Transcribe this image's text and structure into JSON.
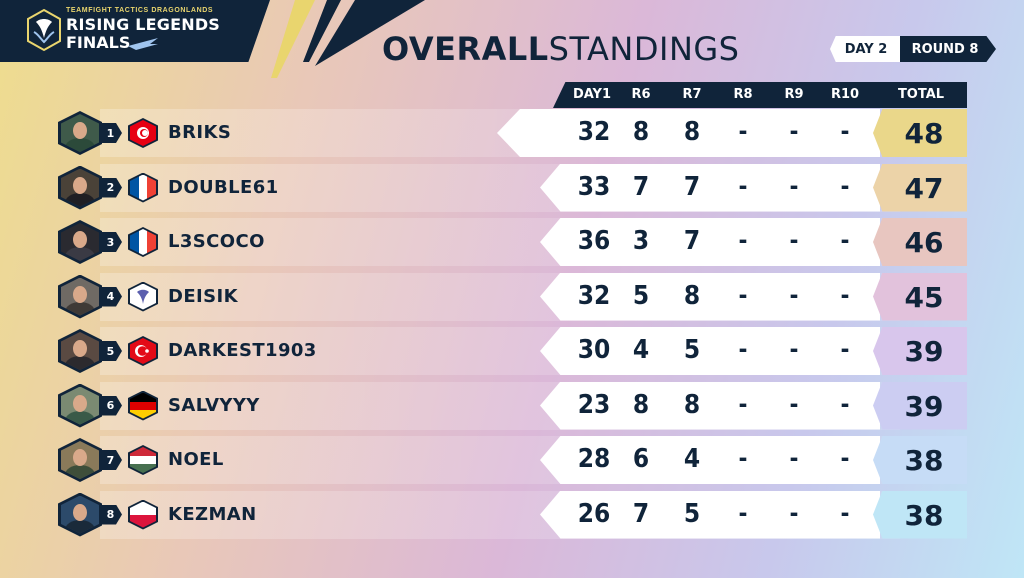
{
  "branding": {
    "kicker": "TEAMFIGHT TACTICS DRAGONLANDS",
    "title": "RISING LEGENDS",
    "subtitle": "FINALS"
  },
  "heading": {
    "bold": "OVERALL",
    "light": "STANDINGS"
  },
  "day_label": "DAY 2",
  "round_label": "ROUND 8",
  "columns": [
    "DAY1",
    "R6",
    "R7",
    "R8",
    "R9",
    "R10",
    "TOTAL"
  ],
  "rows": [
    {
      "rank": "1",
      "name": "BRIKS",
      "flag": "tunisia-flag-icon",
      "day1": "32",
      "r6": "8",
      "r7": "8",
      "r8": "-",
      "r9": "-",
      "r10": "-",
      "total": "48"
    },
    {
      "rank": "2",
      "name": "DOUBLE61",
      "flag": "france-flag-icon",
      "day1": "33",
      "r6": "7",
      "r7": "7",
      "r8": "-",
      "r9": "-",
      "r10": "-",
      "total": "47"
    },
    {
      "rank": "3",
      "name": "L3SCOCO",
      "flag": "france-flag-icon",
      "day1": "36",
      "r6": "3",
      "r7": "7",
      "r8": "-",
      "r9": "-",
      "r10": "-",
      "total": "46"
    },
    {
      "rank": "4",
      "name": "DEISIK",
      "flag": "tft-emblem-icon",
      "day1": "32",
      "r6": "5",
      "r7": "8",
      "r8": "-",
      "r9": "-",
      "r10": "-",
      "total": "45"
    },
    {
      "rank": "5",
      "name": "DARKEST1903",
      "flag": "turkey-flag-icon",
      "day1": "30",
      "r6": "4",
      "r7": "5",
      "r8": "-",
      "r9": "-",
      "r10": "-",
      "total": "39"
    },
    {
      "rank": "6",
      "name": "SALVYYY",
      "flag": "germany-flag-icon",
      "day1": "23",
      "r6": "8",
      "r7": "8",
      "r8": "-",
      "r9": "-",
      "r10": "-",
      "total": "39"
    },
    {
      "rank": "7",
      "name": "NOEL",
      "flag": "hungary-flag-icon",
      "day1": "28",
      "r6": "6",
      "r7": "4",
      "r8": "-",
      "r9": "-",
      "r10": "-",
      "total": "38"
    },
    {
      "rank": "8",
      "name": "KEZMAN",
      "flag": "poland-flag-icon",
      "day1": "26",
      "r6": "7",
      "r7": "5",
      "r8": "-",
      "r9": "-",
      "r10": "-",
      "total": "38"
    }
  ],
  "colors": {
    "navy": "#10243a",
    "gold": "#e9d56e",
    "total_bg": [
      "#ead78a",
      "#ecd3a8",
      "#e8c6c0",
      "#e2c2dc",
      "#d8c6ec",
      "#cccdf2",
      "#c6dcf6",
      "#bfe6f6"
    ]
  }
}
